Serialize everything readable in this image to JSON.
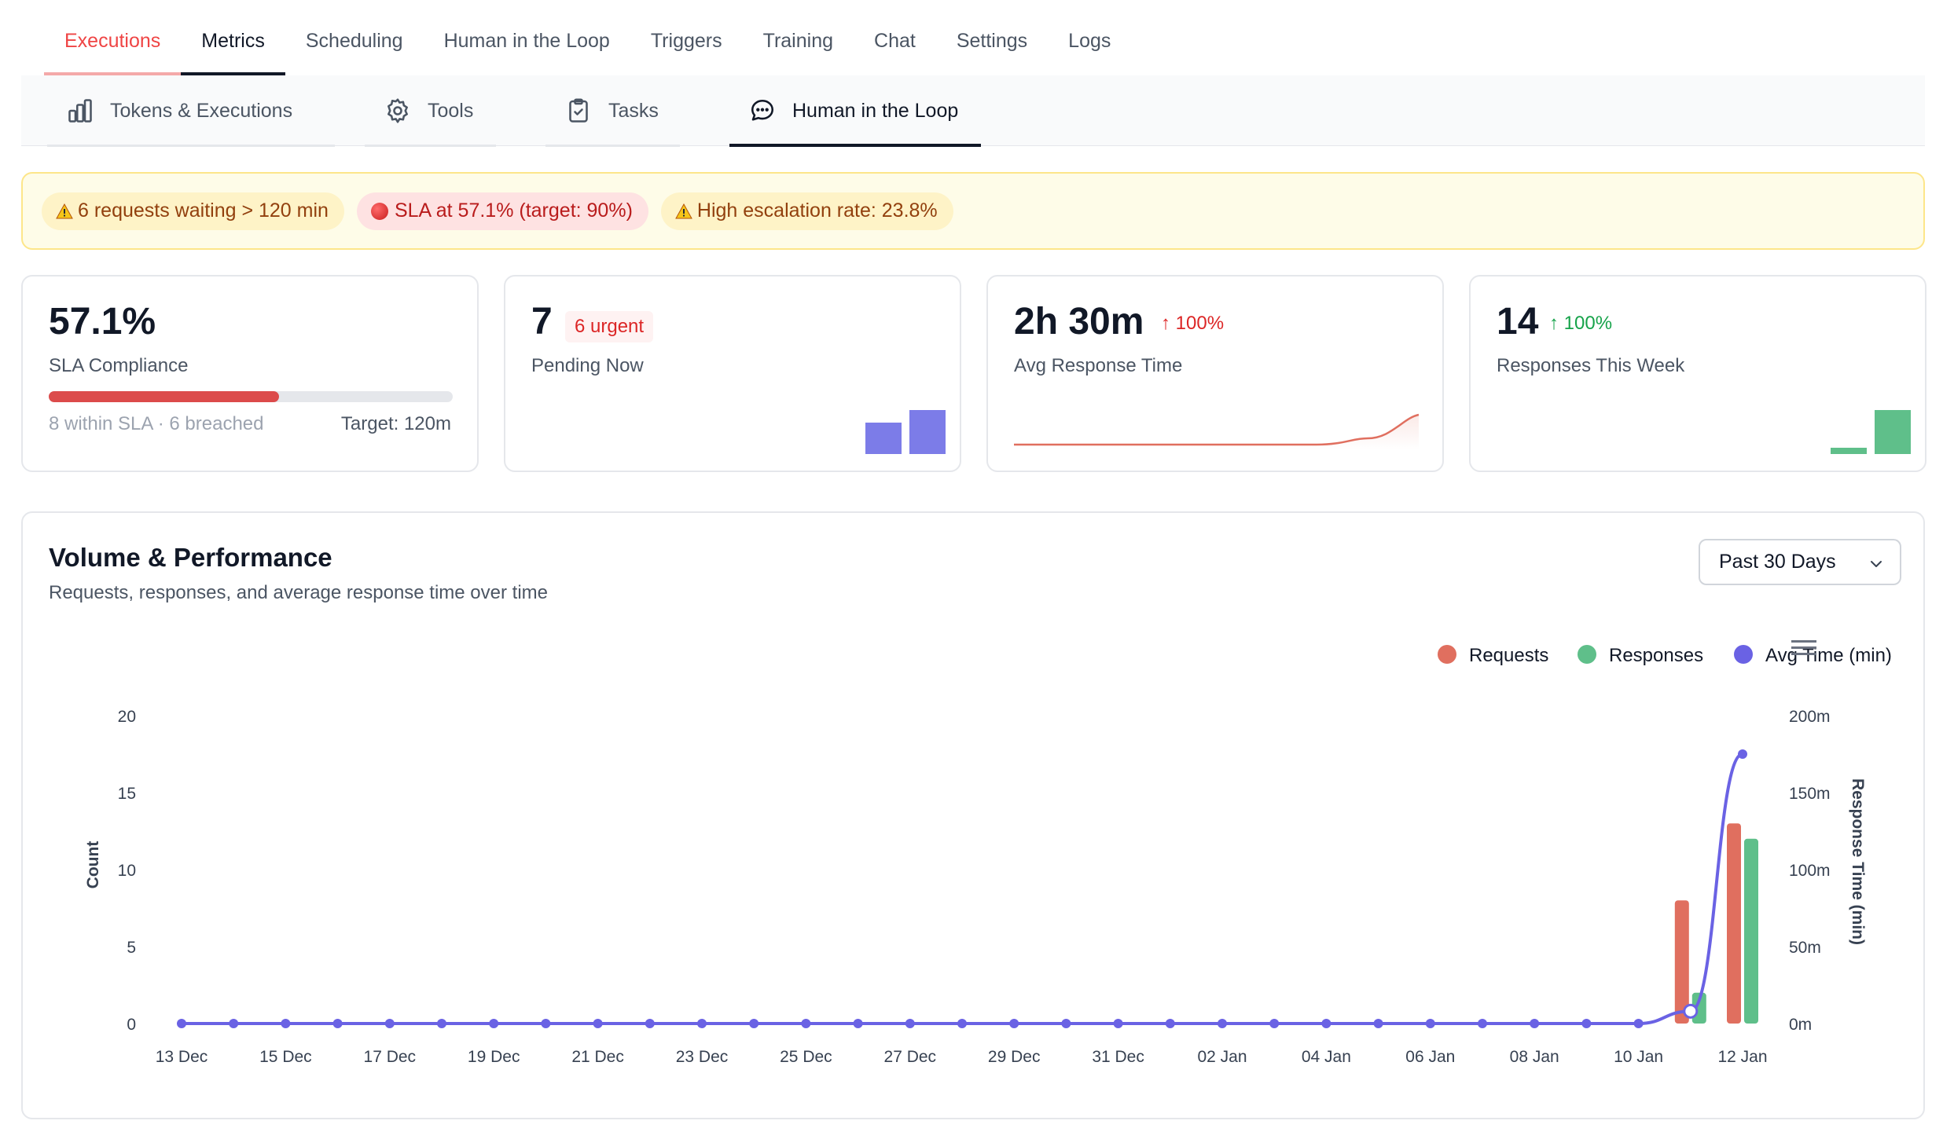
{
  "top_tabs": {
    "executions": "Executions",
    "metrics": "Metrics",
    "scheduling": "Scheduling",
    "hitl": "Human in the Loop",
    "triggers": "Triggers",
    "training": "Training",
    "chat": "Chat",
    "settings": "Settings",
    "logs": "Logs"
  },
  "sub_tabs": {
    "tokens": "Tokens & Executions",
    "tools": "Tools",
    "tasks": "Tasks",
    "hitl": "Human in the Loop"
  },
  "alerts": {
    "waiting": "6 requests waiting > 120 min",
    "sla": "SLA at 57.1% (target: 90%)",
    "escalation": "High escalation rate: 23.8%"
  },
  "kpis": {
    "sla": {
      "value": "57.1%",
      "label": "SLA Compliance",
      "fill_percent": 57.1,
      "detail": "8 within SLA · 6 breached",
      "target": "Target: 120m"
    },
    "pending": {
      "value": "7",
      "badge": "6 urgent",
      "label": "Pending Now",
      "spark": [
        5,
        7
      ]
    },
    "avg_response": {
      "value": "2h 30m",
      "change": "↑ 100%",
      "label": "Avg Response Time"
    },
    "responses": {
      "value": "14",
      "change": "↑ 100%",
      "label": "Responses This Week",
      "spark": [
        1,
        7
      ]
    }
  },
  "colors": {
    "requests": "#e06f5f",
    "responses": "#5fbf8a",
    "avg_time": "#6a62e4",
    "pending_spark": "#7c7ce8"
  },
  "panel": {
    "title": "Volume & Performance",
    "subtitle": "Requests, responses, and average response time over time",
    "range": "Past 30 Days"
  },
  "chart_data": {
    "type": "bar",
    "title": "",
    "legend": [
      "Requests",
      "Responses",
      "Avg Time (min)"
    ],
    "legend_position": "top-right",
    "ylabel_left": "Count",
    "ylabel_right": "Response Time (min)",
    "y_ticks": [
      "0",
      "5",
      "10",
      "15",
      "20"
    ],
    "y2_ticks": [
      "0m",
      "50m",
      "100m",
      "150m",
      "200m"
    ],
    "ylim": [
      0,
      20
    ],
    "y2lim": [
      0,
      200
    ],
    "x_tick_labels": [
      "13 Dec",
      "15 Dec",
      "17 Dec",
      "19 Dec",
      "21 Dec",
      "23 Dec",
      "25 Dec",
      "27 Dec",
      "29 Dec",
      "31 Dec",
      "02 Jan",
      "04 Jan",
      "06 Jan",
      "08 Jan",
      "10 Jan",
      "12 Jan"
    ],
    "x_tick_index": [
      0,
      2,
      4,
      6,
      8,
      10,
      12,
      14,
      16,
      18,
      20,
      22,
      24,
      26,
      28,
      30
    ],
    "num_days": 31,
    "series": [
      {
        "name": "Requests",
        "values": [
          0,
          0,
          0,
          0,
          0,
          0,
          0,
          0,
          0,
          0,
          0,
          0,
          0,
          0,
          0,
          0,
          0,
          0,
          0,
          0,
          0,
          0,
          0,
          0,
          0,
          0,
          0,
          0,
          0,
          8,
          13
        ]
      },
      {
        "name": "Responses",
        "values": [
          0,
          0,
          0,
          0,
          0,
          0,
          0,
          0,
          0,
          0,
          0,
          0,
          0,
          0,
          0,
          0,
          0,
          0,
          0,
          0,
          0,
          0,
          0,
          0,
          0,
          0,
          0,
          0,
          0,
          2,
          12
        ]
      },
      {
        "name": "Avg Time (min)",
        "values": [
          0,
          0,
          0,
          0,
          0,
          0,
          0,
          0,
          0,
          0,
          0,
          0,
          0,
          0,
          0,
          0,
          0,
          0,
          0,
          0,
          0,
          0,
          0,
          0,
          0,
          0,
          0,
          0,
          0,
          8,
          175
        ]
      }
    ]
  }
}
